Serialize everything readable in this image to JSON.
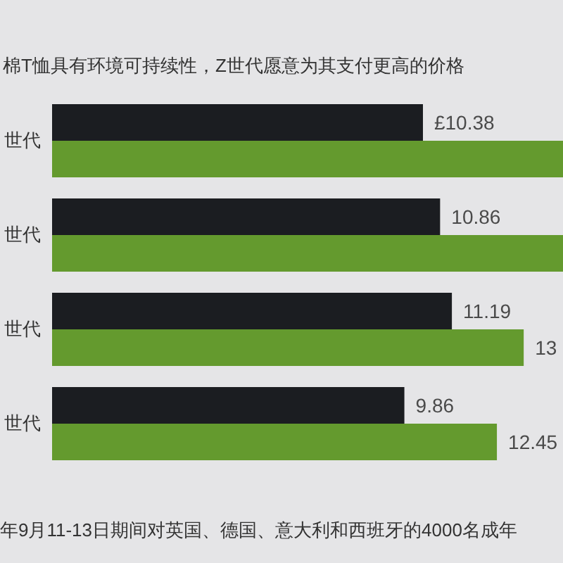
{
  "chart_data": {
    "type": "bar",
    "orientation": "horizontal",
    "title": "棉T恤具有环境可持续性，Z世代愿意为其支付更高的价格",
    "categories": [
      "世代",
      "世代",
      "世代",
      "世代"
    ],
    "series": [
      {
        "color": "#1b1d21",
        "values": [
          10.38,
          10.86,
          11.19,
          9.86
        ],
        "value_labels": [
          "£10.38",
          "10.86",
          "11.19",
          "9.86"
        ]
      },
      {
        "color": "#649a2e",
        "values": [
          14.3,
          14.3,
          13.2,
          12.45
        ],
        "value_labels": [
          null,
          null,
          "13",
          "12.45"
        ]
      }
    ],
    "annotations": [
      "年9月11-13日期间对英国、德国、意大利和西班牙的4000名成年"
    ]
  }
}
